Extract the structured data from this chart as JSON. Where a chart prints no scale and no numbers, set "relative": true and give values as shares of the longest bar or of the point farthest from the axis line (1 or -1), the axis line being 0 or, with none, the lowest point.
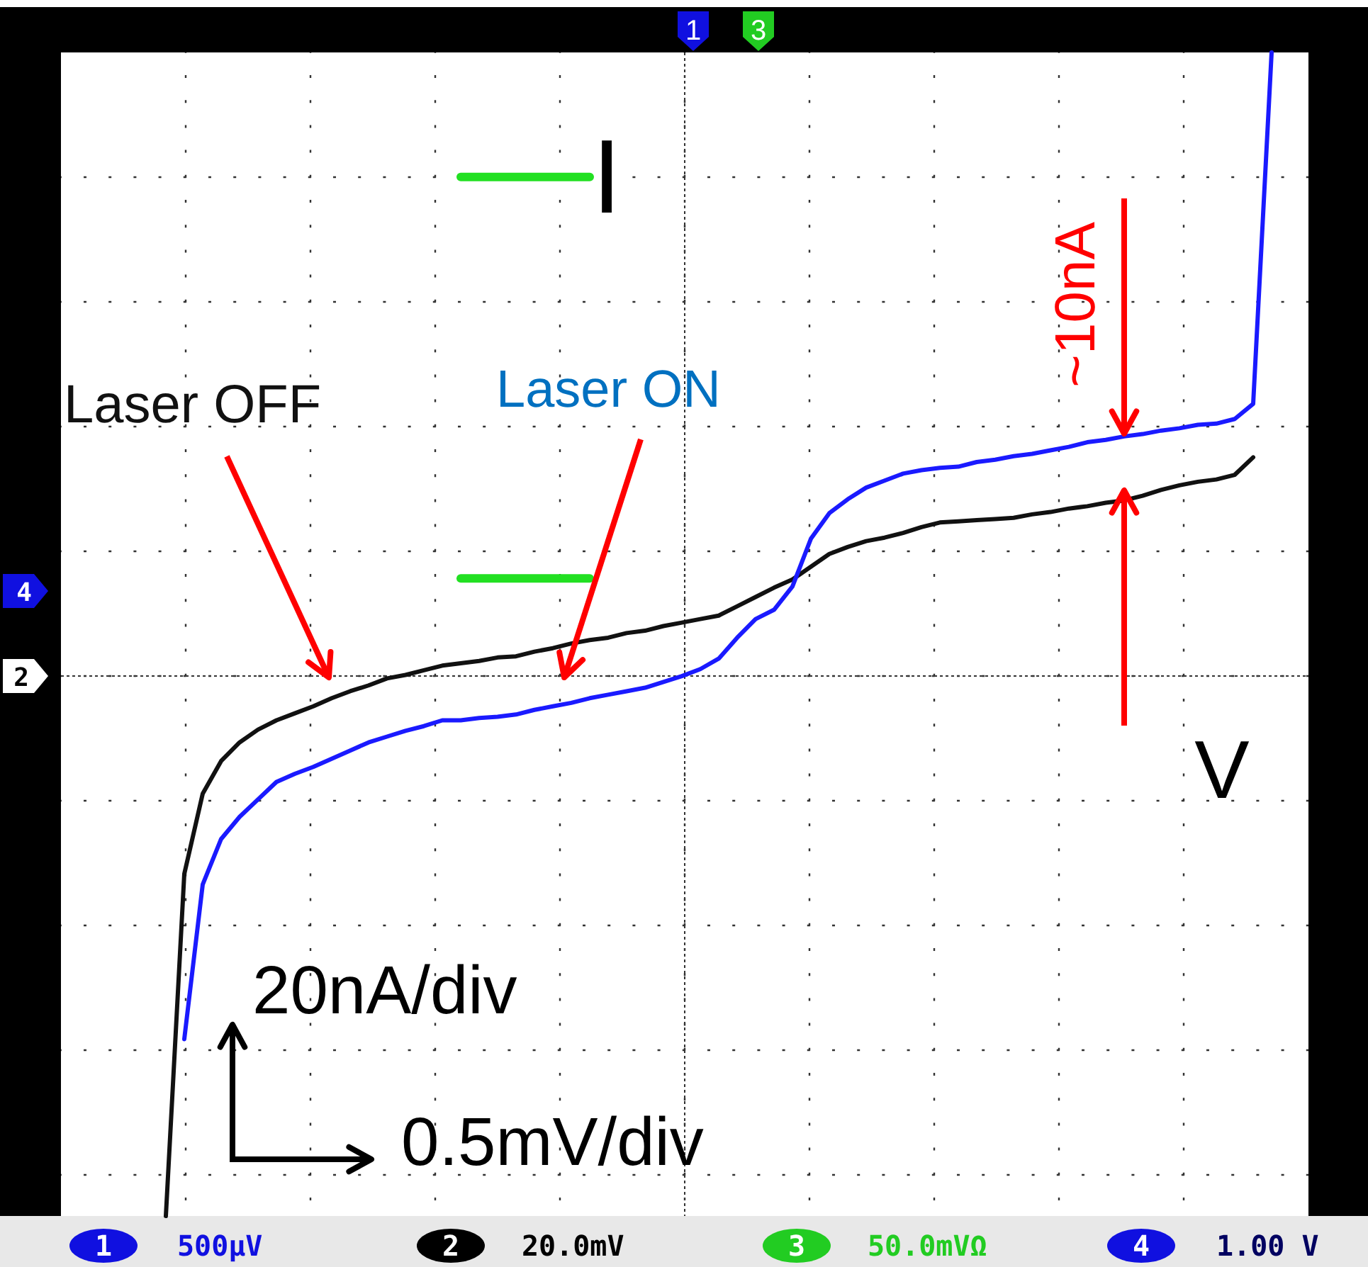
{
  "chart_data": {
    "type": "line",
    "relative": true,
    "grid": true,
    "marker": "none",
    "line_style": "solid",
    "categories": [
      null,
      null,
      null,
      null,
      null,
      null,
      null,
      null,
      null,
      null,
      null,
      null,
      null,
      null,
      null,
      null,
      null,
      null,
      null,
      null,
      null,
      null,
      null,
      null,
      null,
      null,
      null,
      null,
      null,
      null,
      null,
      null,
      null,
      null,
      null,
      null,
      null,
      null,
      null,
      null,
      null,
      null,
      null,
      null,
      null,
      null,
      null,
      null,
      null,
      null,
      null,
      null,
      null,
      null,
      null,
      null,
      null,
      null,
      null,
      null,
      null
    ],
    "series": [
      {
        "name": "Laser OFF",
        "color": "#111111",
        "values": [
          0,
          0.294,
          0.363,
          0.391,
          0.407,
          0.418,
          0.426,
          0.432,
          0.438,
          0.445,
          0.451,
          0.456,
          0.462,
          0.465,
          0.469,
          0.473,
          0.475,
          0.477,
          0.48,
          0.481,
          0.485,
          0.488,
          0.492,
          0.495,
          0.497,
          0.501,
          0.503,
          0.507,
          0.51,
          0.513,
          0.516,
          0.524,
          0.532,
          0.54,
          0.547,
          0.558,
          0.569,
          0.575,
          0.58,
          0.583,
          0.587,
          0.592,
          0.596,
          0.597,
          0.598,
          0.599,
          0.6,
          0.603,
          0.605,
          0.608,
          0.61,
          0.613,
          0.615,
          0.619,
          0.624,
          0.628,
          0.631,
          0.633,
          0.637,
          0.652,
          null
        ]
      },
      {
        "name": "Laser ON",
        "color": "#1a1aff",
        "values": [
          null,
          0.152,
          0.285,
          0.324,
          0.343,
          0.358,
          0.373,
          0.38,
          0.386,
          0.393,
          0.4,
          0.407,
          0.412,
          0.417,
          0.421,
          0.426,
          0.426,
          0.428,
          0.429,
          0.431,
          0.435,
          0.438,
          0.441,
          0.445,
          0.448,
          0.451,
          0.454,
          0.459,
          0.464,
          0.47,
          0.479,
          0.497,
          0.513,
          0.521,
          0.541,
          0.582,
          0.604,
          0.616,
          0.626,
          0.632,
          0.638,
          0.641,
          0.643,
          0.644,
          0.648,
          0.65,
          0.653,
          0.655,
          0.658,
          0.661,
          0.665,
          0.667,
          0.67,
          0.672,
          0.675,
          0.677,
          0.68,
          0.681,
          0.685,
          0.698,
          1
        ]
      },
      {
        "color": "#22e022",
        "values": [
          null,
          null,
          null,
          null,
          null,
          null,
          null,
          null,
          null,
          null,
          null,
          null,
          null,
          null,
          null,
          null,
          0.893,
          0.893,
          0.893,
          0.893,
          0.893,
          0.893,
          0.893,
          0.893,
          null,
          null,
          null,
          null,
          null,
          null,
          null,
          null,
          null,
          null,
          null,
          null,
          null,
          null,
          null,
          null,
          null,
          null,
          null,
          null,
          null,
          null,
          null,
          null,
          null,
          null,
          null,
          null,
          null,
          null,
          null,
          null,
          null,
          null,
          null,
          null,
          null
        ]
      },
      {
        "color": "#22e022",
        "values": [
          null,
          null,
          null,
          null,
          null,
          null,
          null,
          null,
          null,
          null,
          null,
          null,
          null,
          null,
          null,
          null,
          0.548,
          0.548,
          0.548,
          0.548,
          0.548,
          0.548,
          0.548,
          0.548,
          null,
          null,
          null,
          null,
          null,
          null,
          null,
          null,
          null,
          null,
          null,
          null,
          null,
          null,
          null,
          null,
          null,
          null,
          null,
          null,
          null,
          null,
          null,
          null,
          null,
          null,
          null,
          null,
          null,
          null,
          null,
          null,
          null,
          null,
          null,
          null,
          null
        ]
      }
    ],
    "ref_lines": [
      {
        "axis": "y",
        "value": 0.464,
        "color": "#333333",
        "line_style": "dotted"
      }
    ],
    "annotations": [
      "I",
      "V",
      "~10nA",
      "20nA/div",
      "0.5mV/div",
      "500µV",
      "20.0mV",
      "50.0mVΩ",
      "1.00 V",
      "1",
      "3",
      "4",
      "2",
      "1",
      "2",
      "3",
      "4"
    ]
  }
}
